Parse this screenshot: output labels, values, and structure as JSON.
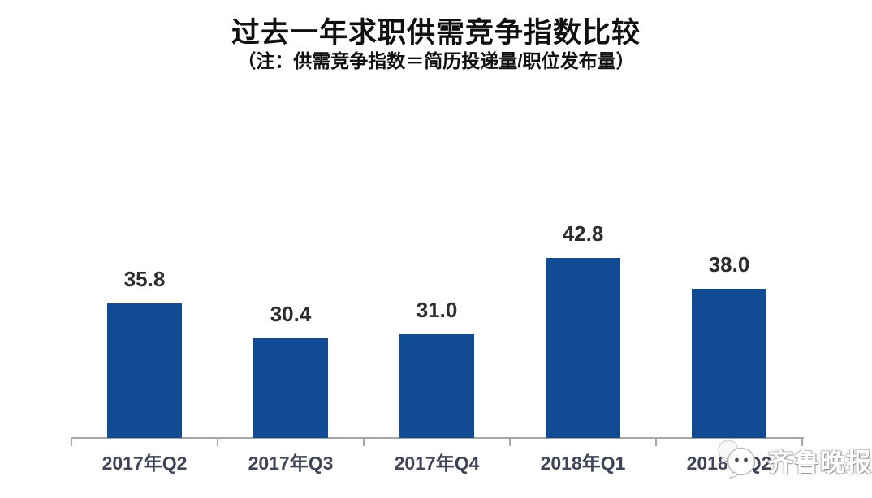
{
  "chart_data": {
    "type": "bar",
    "title": "过去一年求职供需竞争指数比较",
    "subtitle": "（注：供需竞争指数＝简历投递量/职位发布量）",
    "categories": [
      "2017年Q2",
      "2017年Q3",
      "2017年Q4",
      "2018年Q1",
      "2018年Q2"
    ],
    "values": [
      35.8,
      30.4,
      31.0,
      42.8,
      38.0
    ],
    "value_labels": [
      "35.8",
      "30.4",
      "31.0",
      "42.8",
      "38.0"
    ],
    "xlabel": "",
    "ylabel": "",
    "ylim": [
      15,
      48
    ],
    "grid": false,
    "legend_position": "none",
    "bar_color": "#114b94",
    "axis_color": "#a6a6a6",
    "value_label_color": "#2d2d2d",
    "category_label_color": "#3f4458",
    "title_color": "#101010"
  },
  "watermark": {
    "text": "齐鲁晚报",
    "icon": "wechat-logo-icon",
    "text_color": "#ffffff"
  }
}
